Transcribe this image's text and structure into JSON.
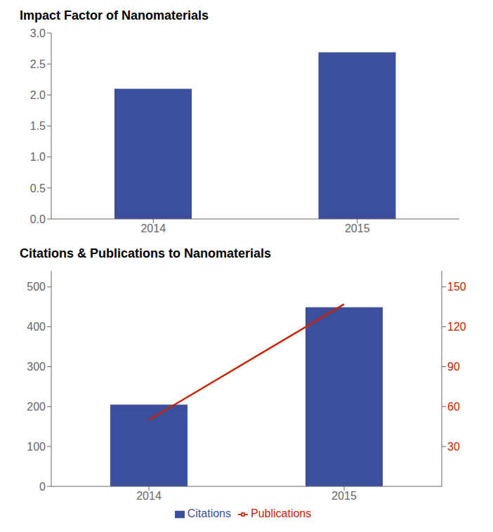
{
  "chart_data": [
    {
      "type": "bar",
      "title": "Impact Factor of Nanomaterials",
      "categories": [
        "2014",
        "2015"
      ],
      "values": [
        2.1,
        2.69
      ],
      "color": "#3B4F9C",
      "ylim": [
        0,
        3.0
      ],
      "yticks": [
        {
          "value": 0,
          "label": "0.0"
        },
        0.5,
        {
          "value": 1,
          "label": "1.0"
        },
        1.5,
        {
          "value": 2,
          "label": "2.0"
        },
        2.5,
        {
          "value": 3,
          "label": "3.0"
        }
      ],
      "grid": false
    },
    {
      "type": "bar",
      "title": "Citations & Publications to Nanomaterials",
      "categories": [
        "2014",
        "2015"
      ],
      "series": [
        {
          "name": "Citations",
          "type": "bar",
          "color": "#3B4F9C",
          "values": [
            205,
            449
          ]
        },
        {
          "name": "Publications",
          "type": "line",
          "color": "#CC2200",
          "values": [
            50,
            137
          ],
          "axis": "y2"
        }
      ],
      "ylim": [
        0,
        540
      ],
      "yticks": [
        0,
        100,
        200,
        300,
        400,
        500
      ],
      "y2lim": [
        0,
        162
      ],
      "y2ticks": [
        30,
        60,
        90,
        120,
        150
      ],
      "grid": false,
      "legend": "bottom"
    }
  ]
}
